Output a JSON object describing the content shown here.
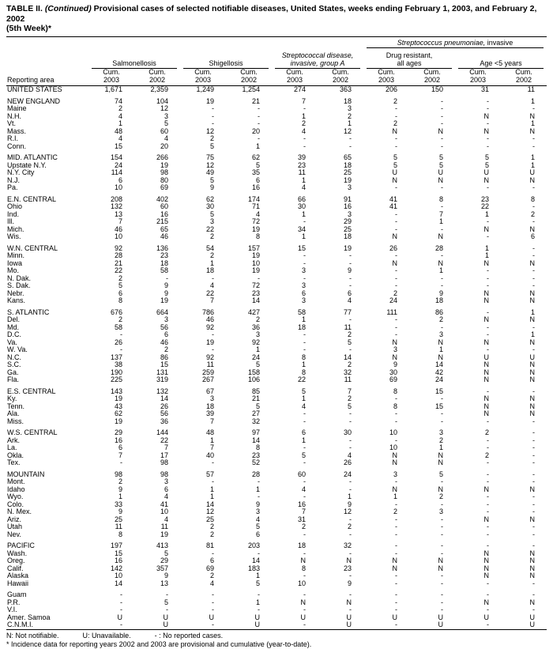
{
  "title": {
    "prefix": "TABLE II. ",
    "continued": "(Continued)",
    "rest": " Provisional cases of selected notifiable diseases, United States, weeks ending February 1, 2003, and February 2, 2002",
    "week": "(5th Week)*"
  },
  "header": {
    "reporting_area": "Reporting area",
    "strep_pneumo_italic": "Streptococcus pneumoniae,",
    "strep_pneumo_rest": " invasive",
    "salmonellosis": "Salmonellosis",
    "shigellosis": "Shigellosis",
    "strep_a_line1": "Streptococcal disease,",
    "strep_a_line2": "invasive, group A",
    "drug_line1": "Drug resistant,",
    "drug_line2": "all ages",
    "age5": "Age <5 years",
    "cum": "Cum.",
    "years": [
      "2003",
      "2002"
    ]
  },
  "sections": [
    {
      "rows": [
        {
          "area": "UNITED STATES",
          "v": [
            "1,671",
            "2,359",
            "1,249",
            "1,254",
            "274",
            "363",
            "206",
            "150",
            "31",
            "11"
          ]
        }
      ]
    },
    {
      "rows": [
        {
          "area": "NEW ENGLAND",
          "v": [
            "74",
            "104",
            "19",
            "21",
            "7",
            "18",
            "2",
            "-",
            "-",
            "1"
          ]
        },
        {
          "area": "Maine",
          "v": [
            "2",
            "12",
            "-",
            "-",
            "-",
            "3",
            "-",
            "-",
            "-",
            "-"
          ]
        },
        {
          "area": "N.H.",
          "v": [
            "4",
            "3",
            "-",
            "-",
            "1",
            "2",
            "-",
            "-",
            "N",
            "N"
          ]
        },
        {
          "area": "Vt.",
          "v": [
            "1",
            "5",
            "-",
            "-",
            "2",
            "1",
            "2",
            "-",
            "-",
            "1"
          ]
        },
        {
          "area": "Mass.",
          "v": [
            "48",
            "60",
            "12",
            "20",
            "4",
            "12",
            "N",
            "N",
            "N",
            "N"
          ]
        },
        {
          "area": "R.I.",
          "v": [
            "4",
            "4",
            "2",
            "-",
            "-",
            "-",
            "-",
            "-",
            "-",
            "-"
          ]
        },
        {
          "area": "Conn.",
          "v": [
            "15",
            "20",
            "5",
            "1",
            "-",
            "-",
            "-",
            "-",
            "-",
            "-"
          ]
        }
      ]
    },
    {
      "rows": [
        {
          "area": "MID. ATLANTIC",
          "v": [
            "154",
            "266",
            "75",
            "62",
            "39",
            "65",
            "5",
            "5",
            "5",
            "1"
          ]
        },
        {
          "area": "Upstate N.Y.",
          "v": [
            "24",
            "19",
            "12",
            "5",
            "23",
            "18",
            "5",
            "5",
            "5",
            "1"
          ]
        },
        {
          "area": "N.Y. City",
          "v": [
            "114",
            "98",
            "49",
            "35",
            "11",
            "25",
            "U",
            "U",
            "U",
            "U"
          ]
        },
        {
          "area": "N.J.",
          "v": [
            "6",
            "80",
            "5",
            "6",
            "1",
            "19",
            "N",
            "N",
            "N",
            "N"
          ]
        },
        {
          "area": "Pa.",
          "v": [
            "10",
            "69",
            "9",
            "16",
            "4",
            "3",
            "-",
            "-",
            "-",
            "-"
          ]
        }
      ]
    },
    {
      "rows": [
        {
          "area": "E.N. CENTRAL",
          "v": [
            "208",
            "402",
            "62",
            "174",
            "66",
            "91",
            "41",
            "8",
            "23",
            "8"
          ]
        },
        {
          "area": "Ohio",
          "v": [
            "132",
            "60",
            "30",
            "71",
            "30",
            "16",
            "41",
            "-",
            "22",
            "-"
          ]
        },
        {
          "area": "Ind.",
          "v": [
            "13",
            "16",
            "5",
            "4",
            "1",
            "3",
            "-",
            "7",
            "1",
            "2"
          ]
        },
        {
          "area": "Ill.",
          "v": [
            "7",
            "215",
            "3",
            "72",
            "-",
            "29",
            "-",
            "1",
            "-",
            "-"
          ]
        },
        {
          "area": "Mich.",
          "v": [
            "46",
            "65",
            "22",
            "19",
            "34",
            "25",
            "-",
            "-",
            "N",
            "N"
          ]
        },
        {
          "area": "Wis.",
          "v": [
            "10",
            "46",
            "2",
            "8",
            "1",
            "18",
            "N",
            "N",
            "-",
            "6"
          ]
        }
      ]
    },
    {
      "rows": [
        {
          "area": "W.N. CENTRAL",
          "v": [
            "92",
            "136",
            "54",
            "157",
            "15",
            "19",
            "26",
            "28",
            "1",
            "-"
          ]
        },
        {
          "area": "Minn.",
          "v": [
            "28",
            "23",
            "2",
            "19",
            "-",
            "-",
            "-",
            "-",
            "1",
            "-"
          ]
        },
        {
          "area": "Iowa",
          "v": [
            "21",
            "18",
            "1",
            "10",
            "-",
            "-",
            "N",
            "N",
            "N",
            "N"
          ]
        },
        {
          "area": "Mo.",
          "v": [
            "22",
            "58",
            "18",
            "19",
            "3",
            "9",
            "-",
            "1",
            "-",
            "-"
          ]
        },
        {
          "area": "N. Dak.",
          "v": [
            "2",
            "-",
            "-",
            "-",
            "-",
            "-",
            "-",
            "-",
            "-",
            "-"
          ]
        },
        {
          "area": "S. Dak.",
          "v": [
            "5",
            "9",
            "4",
            "72",
            "3",
            "-",
            "-",
            "-",
            "-",
            "-"
          ]
        },
        {
          "area": "Nebr.",
          "v": [
            "6",
            "9",
            "22",
            "23",
            "6",
            "6",
            "2",
            "9",
            "N",
            "N"
          ]
        },
        {
          "area": "Kans.",
          "v": [
            "8",
            "19",
            "7",
            "14",
            "3",
            "4",
            "24",
            "18",
            "N",
            "N"
          ]
        }
      ]
    },
    {
      "rows": [
        {
          "area": "S. ATLANTIC",
          "v": [
            "676",
            "664",
            "786",
            "427",
            "58",
            "77",
            "111",
            "86",
            "-",
            "1"
          ]
        },
        {
          "area": "Del.",
          "v": [
            "2",
            "3",
            "46",
            "2",
            "1",
            "-",
            "-",
            "2",
            "N",
            "N"
          ]
        },
        {
          "area": "Md.",
          "v": [
            "58",
            "56",
            "92",
            "36",
            "18",
            "11",
            "-",
            "-",
            "-",
            "-"
          ]
        },
        {
          "area": "D.C.",
          "v": [
            "-",
            "6",
            "-",
            "3",
            "-",
            "2",
            "-",
            "3",
            "-",
            "1"
          ]
        },
        {
          "area": "Va.",
          "v": [
            "26",
            "46",
            "19",
            "92",
            "-",
            "5",
            "N",
            "N",
            "N",
            "N"
          ]
        },
        {
          "area": "W. Va.",
          "v": [
            "-",
            "2",
            "-",
            "1",
            "-",
            "-",
            "3",
            "1",
            "-",
            "-"
          ]
        },
        {
          "area": "N.C.",
          "v": [
            "137",
            "86",
            "92",
            "24",
            "8",
            "14",
            "N",
            "N",
            "U",
            "U"
          ]
        },
        {
          "area": "S.C.",
          "v": [
            "38",
            "15",
            "11",
            "5",
            "1",
            "2",
            "9",
            "14",
            "N",
            "N"
          ]
        },
        {
          "area": "Ga.",
          "v": [
            "190",
            "131",
            "259",
            "158",
            "8",
            "32",
            "30",
            "42",
            "N",
            "N"
          ]
        },
        {
          "area": "Fla.",
          "v": [
            "225",
            "319",
            "267",
            "106",
            "22",
            "11",
            "69",
            "24",
            "N",
            "N"
          ]
        }
      ]
    },
    {
      "rows": [
        {
          "area": "E.S. CENTRAL",
          "v": [
            "143",
            "132",
            "67",
            "85",
            "5",
            "7",
            "8",
            "15",
            "-",
            "-"
          ]
        },
        {
          "area": "Ky.",
          "v": [
            "19",
            "14",
            "3",
            "21",
            "1",
            "2",
            "-",
            "-",
            "N",
            "N"
          ]
        },
        {
          "area": "Tenn.",
          "v": [
            "43",
            "26",
            "18",
            "5",
            "4",
            "5",
            "8",
            "15",
            "N",
            "N"
          ]
        },
        {
          "area": "Ala.",
          "v": [
            "62",
            "56",
            "39",
            "27",
            "-",
            "-",
            "-",
            "-",
            "N",
            "N"
          ]
        },
        {
          "area": "Miss.",
          "v": [
            "19",
            "36",
            "7",
            "32",
            "-",
            "-",
            "-",
            "-",
            "-",
            "-"
          ]
        }
      ]
    },
    {
      "rows": [
        {
          "area": "W.S. CENTRAL",
          "v": [
            "29",
            "144",
            "48",
            "97",
            "6",
            "30",
            "10",
            "3",
            "2",
            "-"
          ]
        },
        {
          "area": "Ark.",
          "v": [
            "16",
            "22",
            "1",
            "14",
            "1",
            "-",
            "-",
            "2",
            "-",
            "-"
          ]
        },
        {
          "area": "La.",
          "v": [
            "6",
            "7",
            "7",
            "8",
            "-",
            "-",
            "10",
            "1",
            "-",
            "-"
          ]
        },
        {
          "area": "Okla.",
          "v": [
            "7",
            "17",
            "40",
            "23",
            "5",
            "4",
            "N",
            "N",
            "2",
            "-"
          ]
        },
        {
          "area": "Tex.",
          "v": [
            "-",
            "98",
            "-",
            "52",
            "-",
            "26",
            "N",
            "N",
            "-",
            "-"
          ]
        }
      ]
    },
    {
      "rows": [
        {
          "area": "MOUNTAIN",
          "v": [
            "98",
            "98",
            "57",
            "28",
            "60",
            "24",
            "3",
            "5",
            "-",
            "-"
          ]
        },
        {
          "area": "Mont.",
          "v": [
            "2",
            "3",
            "-",
            "-",
            "-",
            "-",
            "-",
            "-",
            "-",
            "-"
          ]
        },
        {
          "area": "Idaho",
          "v": [
            "9",
            "6",
            "1",
            "1",
            "4",
            "-",
            "N",
            "N",
            "N",
            "N"
          ]
        },
        {
          "area": "Wyo.",
          "v": [
            "1",
            "4",
            "1",
            "-",
            "-",
            "1",
            "1",
            "2",
            "-",
            "-"
          ]
        },
        {
          "area": "Colo.",
          "v": [
            "33",
            "41",
            "14",
            "9",
            "16",
            "9",
            "-",
            "-",
            "-",
            "-"
          ]
        },
        {
          "area": "N. Mex.",
          "v": [
            "9",
            "10",
            "12",
            "3",
            "7",
            "12",
            "2",
            "3",
            "-",
            "-"
          ]
        },
        {
          "area": "Ariz.",
          "v": [
            "25",
            "4",
            "25",
            "4",
            "31",
            "-",
            "-",
            "-",
            "N",
            "N"
          ]
        },
        {
          "area": "Utah",
          "v": [
            "11",
            "11",
            "2",
            "5",
            "2",
            "2",
            "-",
            "-",
            "-",
            "-"
          ]
        },
        {
          "area": "Nev.",
          "v": [
            "8",
            "19",
            "2",
            "6",
            "-",
            "-",
            "-",
            "-",
            "-",
            "-"
          ]
        }
      ]
    },
    {
      "rows": [
        {
          "area": "PACIFIC",
          "v": [
            "197",
            "413",
            "81",
            "203",
            "18",
            "32",
            "-",
            "-",
            "-",
            "-"
          ]
        },
        {
          "area": "Wash.",
          "v": [
            "15",
            "5",
            "-",
            "-",
            "-",
            "-",
            "-",
            "-",
            "N",
            "N"
          ]
        },
        {
          "area": "Oreg.",
          "v": [
            "16",
            "29",
            "6",
            "14",
            "N",
            "N",
            "N",
            "N",
            "N",
            "N"
          ]
        },
        {
          "area": "Calif.",
          "v": [
            "142",
            "357",
            "69",
            "183",
            "8",
            "23",
            "N",
            "N",
            "N",
            "N"
          ]
        },
        {
          "area": "Alaska",
          "v": [
            "10",
            "9",
            "2",
            "1",
            "-",
            "-",
            "-",
            "-",
            "N",
            "N"
          ]
        },
        {
          "area": "Hawaii",
          "v": [
            "14",
            "13",
            "4",
            "5",
            "10",
            "9",
            "-",
            "-",
            "-",
            "-"
          ]
        }
      ]
    },
    {
      "rows": [
        {
          "area": "Guam",
          "v": [
            "-",
            "-",
            "-",
            "-",
            "-",
            "-",
            "-",
            "-",
            "-",
            "-"
          ]
        },
        {
          "area": "P.R.",
          "v": [
            "-",
            "5",
            "-",
            "1",
            "N",
            "N",
            "-",
            "-",
            "N",
            "N"
          ]
        },
        {
          "area": "V.I.",
          "v": [
            "-",
            "-",
            "-",
            "-",
            "-",
            "-",
            "-",
            "-",
            "-",
            "-"
          ]
        },
        {
          "area": "Amer. Samoa",
          "v": [
            "U",
            "U",
            "U",
            "U",
            "U",
            "U",
            "U",
            "U",
            "U",
            "U"
          ]
        },
        {
          "area": "C.N.M.I.",
          "v": [
            "-",
            "U",
            "-",
            "U",
            "-",
            "U",
            "-",
            "U",
            "-",
            "U"
          ]
        }
      ]
    }
  ],
  "footnotes": {
    "n": "N: Not notifiable.",
    "u": "U: Unavailable.",
    "dash": "- : No reported cases.",
    "star": "* Incidence data for reporting years 2002 and 2003 are provisional and cumulative (year-to-date)."
  }
}
